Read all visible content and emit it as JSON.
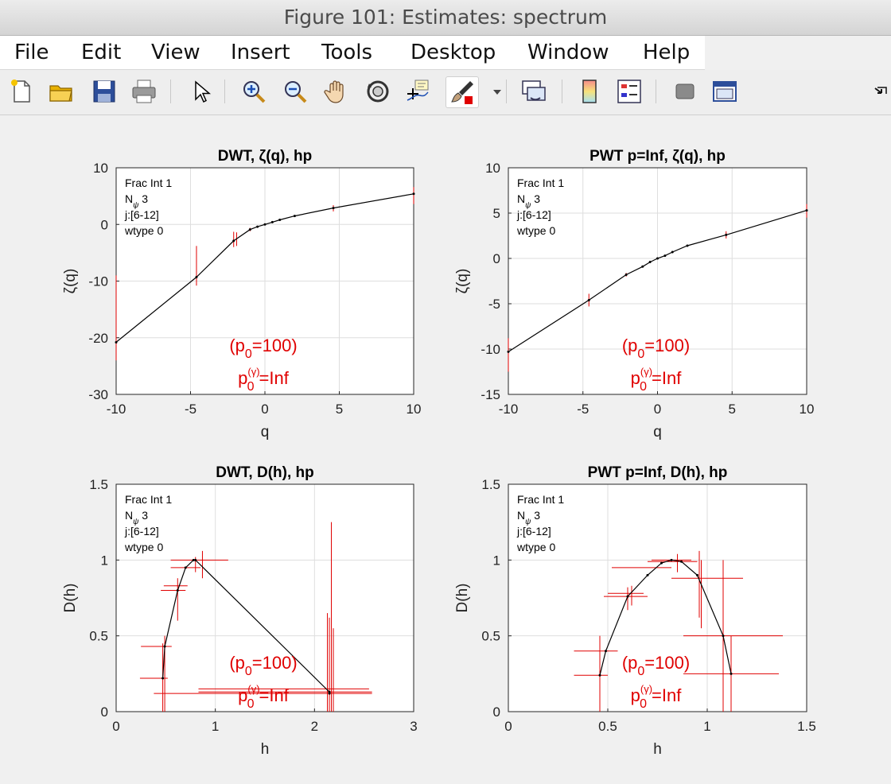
{
  "window": {
    "title": "Figure 101: Estimates: spectrum"
  },
  "menu": [
    "File",
    "Edit",
    "View",
    "Insert",
    "Tools",
    "Desktop",
    "Window",
    "Help"
  ],
  "toolbar": [
    "new-figure",
    "open-file",
    "save",
    "print",
    "edit-plot",
    "zoom-in",
    "zoom-out",
    "pan",
    "rotate-3d",
    "data-cursor",
    "brush",
    "brush-dropdown",
    "link-plot",
    "insert-colorbar",
    "insert-legend",
    "hide-plot-tools",
    "show-plot-tools",
    "dock"
  ],
  "colors": {
    "curve": "#000000",
    "errorbar": "#e00000",
    "annotation": "#e00000",
    "grid": "#dedede"
  },
  "annotation": {
    "line1": "(p",
    "sub1": "0",
    "line1_tail": "=100)",
    "line2": "p",
    "sub2": "0",
    "sup2": "(γ)",
    "line2_tail": "=Inf"
  },
  "info": {
    "line1": "Frac Int 1",
    "line2_main": "N",
    "line2_sub": "ψ",
    "line2_tail": " 3",
    "line3": "j:[6-12]",
    "line4": "wtype 0"
  },
  "chart_data": [
    {
      "type": "line",
      "title": "DWT, ζ(q), hp",
      "xlabel": "q",
      "ylabel": "ζ(q)",
      "xlim": [
        -10,
        10
      ],
      "ylim": [
        -30,
        10
      ],
      "xticks": [
        -10,
        -5,
        0,
        5,
        10
      ],
      "yticks": [
        -30,
        -20,
        -10,
        0,
        10
      ],
      "series": [
        {
          "x": [
            -10,
            -4.6,
            -2.1,
            -1.0,
            -0.5,
            0,
            0.5,
            1,
            2,
            4.6,
            10
          ],
          "y": [
            -20.8,
            -9.3,
            -2.9,
            -0.9,
            -0.4,
            0,
            0.4,
            0.8,
            1.5,
            2.9,
            5.4
          ],
          "yerr": [
            {
              "x": -10,
              "lo": -24,
              "hi": -9
            },
            {
              "x": -4.6,
              "lo": -10.8,
              "hi": -3.8
            },
            {
              "x": -2.1,
              "lo": -4.0,
              "hi": -1.3
            },
            {
              "x": -1.9,
              "lo": -3.8,
              "hi": -1.4
            },
            {
              "x": -1.0,
              "lo": -1.2,
              "hi": -0.6
            },
            {
              "x": 4.6,
              "lo": 2.3,
              "hi": 3.4
            },
            {
              "x": 10,
              "lo": 3.6,
              "hi": 6.6
            }
          ]
        }
      ],
      "grid": true
    },
    {
      "type": "line",
      "title": "PWT p=Inf, ζ(q), hp",
      "xlabel": "q",
      "ylabel": "ζ(q)",
      "xlim": [
        -10,
        10
      ],
      "ylim": [
        -15,
        10
      ],
      "xticks": [
        -10,
        -5,
        0,
        5,
        10
      ],
      "yticks": [
        -15,
        -10,
        -5,
        0,
        5,
        10
      ],
      "series": [
        {
          "x": [
            -10,
            -4.6,
            -2.1,
            -1.0,
            -0.5,
            0,
            0.5,
            1,
            2,
            4.6,
            10
          ],
          "y": [
            -10.3,
            -4.6,
            -1.8,
            -0.9,
            -0.4,
            0,
            0.3,
            0.7,
            1.4,
            2.6,
            5.3
          ],
          "yerr": [
            {
              "x": -10,
              "lo": -12.5,
              "hi": -8.8
            },
            {
              "x": -4.6,
              "lo": -5.3,
              "hi": -3.9
            },
            {
              "x": -2.1,
              "lo": -2.0,
              "hi": -1.6
            },
            {
              "x": 4.6,
              "lo": 2.2,
              "hi": 3.0
            },
            {
              "x": 10,
              "lo": 4.5,
              "hi": 6.0
            }
          ]
        }
      ],
      "grid": true
    },
    {
      "type": "line",
      "title": "DWT, D(h), hp",
      "xlabel": "h",
      "ylabel": "D(h)",
      "xlim": [
        0,
        3
      ],
      "ylim": [
        0,
        1.5
      ],
      "xticks": [
        0,
        1,
        2,
        3
      ],
      "yticks": [
        0,
        0.5,
        1,
        1.5
      ],
      "series": [
        {
          "x": [
            0.47,
            0.49,
            0.62,
            0.7,
            0.78,
            0.8,
            2.15,
            2.15
          ],
          "y": [
            0.22,
            0.43,
            0.8,
            0.95,
            1.0,
            1.0,
            0.13,
            0.12
          ],
          "xerr": [
            {
              "y": 0.22,
              "lo": 0.24,
              "hi": 0.52
            },
            {
              "y": 0.43,
              "lo": 0.25,
              "hi": 0.56
            },
            {
              "y": 0.8,
              "lo": 0.45,
              "hi": 0.7
            },
            {
              "y": 0.83,
              "lo": 0.48,
              "hi": 0.72
            },
            {
              "y": 0.95,
              "lo": 0.55,
              "hi": 0.85
            },
            {
              "y": 1.0,
              "lo": 0.55,
              "hi": 1.13
            },
            {
              "y": 0.15,
              "lo": 0.83,
              "hi": 2.55
            },
            {
              "y": 0.13,
              "lo": 0.83,
              "hi": 2.58
            },
            {
              "y": 0.12,
              "lo": 0.38,
              "hi": 2.58
            }
          ],
          "yerr": [
            {
              "x": 0.47,
              "lo": 0.0,
              "hi": 0.45
            },
            {
              "x": 0.49,
              "lo": 0.0,
              "hi": 0.5
            },
            {
              "x": 0.62,
              "lo": 0.6,
              "hi": 0.88
            },
            {
              "x": 0.8,
              "lo": 0.92,
              "hi": 1.02
            },
            {
              "x": 0.87,
              "lo": 0.88,
              "hi": 1.06
            },
            {
              "x": 2.13,
              "lo": 0.0,
              "hi": 0.65
            },
            {
              "x": 2.15,
              "lo": 0.0,
              "hi": 0.62
            },
            {
              "x": 2.17,
              "lo": 0.0,
              "hi": 1.25
            },
            {
              "x": 2.19,
              "lo": 0.0,
              "hi": 0.55
            }
          ]
        }
      ],
      "grid": true
    },
    {
      "type": "line",
      "title": "PWT p=Inf, D(h), hp",
      "xlabel": "h",
      "ylabel": "D(h)",
      "xlim": [
        0,
        1.5
      ],
      "ylim": [
        0,
        1.5
      ],
      "xticks": [
        0,
        0.5,
        1,
        1.5
      ],
      "yticks": [
        0,
        0.5,
        1,
        1.5
      ],
      "series": [
        {
          "x": [
            0.46,
            0.49,
            0.6,
            0.7,
            0.77,
            0.82,
            0.87,
            0.95,
            1.08,
            1.12
          ],
          "y": [
            0.24,
            0.4,
            0.76,
            0.9,
            0.98,
            1.0,
            0.99,
            0.9,
            0.5,
            0.25
          ],
          "xerr": [
            {
              "y": 0.24,
              "lo": 0.33,
              "hi": 0.5
            },
            {
              "y": 0.4,
              "lo": 0.33,
              "hi": 0.55
            },
            {
              "y": 0.76,
              "lo": 0.48,
              "hi": 0.7
            },
            {
              "y": 0.78,
              "lo": 0.5,
              "hi": 0.68
            },
            {
              "y": 0.95,
              "lo": 0.52,
              "hi": 0.82
            },
            {
              "y": 0.99,
              "lo": 0.7,
              "hi": 0.95
            },
            {
              "y": 1.0,
              "lo": 0.72,
              "hi": 0.92
            },
            {
              "y": 0.88,
              "lo": 0.82,
              "hi": 1.18
            },
            {
              "y": 0.5,
              "lo": 0.88,
              "hi": 1.38
            },
            {
              "y": 0.25,
              "lo": 0.88,
              "hi": 1.36
            }
          ],
          "yerr": [
            {
              "x": 0.46,
              "lo": 0.0,
              "hi": 0.5
            },
            {
              "x": 0.6,
              "lo": 0.67,
              "hi": 0.82
            },
            {
              "x": 0.62,
              "lo": 0.7,
              "hi": 0.83
            },
            {
              "x": 0.85,
              "lo": 0.92,
              "hi": 1.04
            },
            {
              "x": 0.96,
              "lo": 0.62,
              "hi": 1.06
            },
            {
              "x": 0.97,
              "lo": 0.55,
              "hi": 1.0
            },
            {
              "x": 1.08,
              "lo": 0.0,
              "hi": 1.0
            },
            {
              "x": 1.12,
              "lo": 0.0,
              "hi": 0.5
            }
          ]
        }
      ],
      "grid": true
    }
  ]
}
